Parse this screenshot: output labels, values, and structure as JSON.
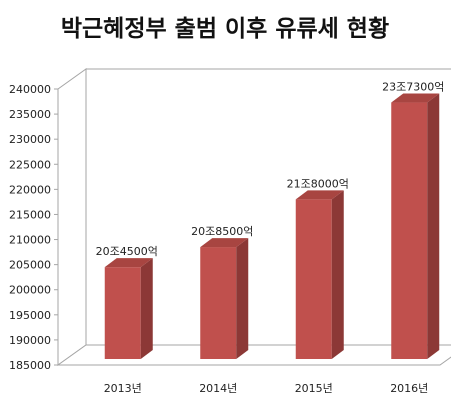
{
  "chart_data": {
    "type": "bar",
    "title": "박근혜정부 출범 이후 유류세 현황",
    "categories": [
      "2013년",
      "2014년",
      "2015년",
      "2016년"
    ],
    "values": [
      204500,
      208500,
      218000,
      237300
    ],
    "data_labels": [
      "20조4500억",
      "20조8500억",
      "21조8000억",
      "23조7300억"
    ],
    "ylim": [
      185000,
      240000
    ],
    "yticks": [
      185000,
      190000,
      195000,
      200000,
      205000,
      210000,
      215000,
      220000,
      225000,
      230000,
      235000,
      240000
    ],
    "xlabel": "",
    "ylabel": "",
    "grid": false,
    "legend": "none",
    "colors": {
      "bar_front": "#c0504d",
      "bar_side": "#8c3836",
      "bar_top": "#a84541",
      "frame": "#a6a6a6",
      "title": "#111111"
    }
  }
}
